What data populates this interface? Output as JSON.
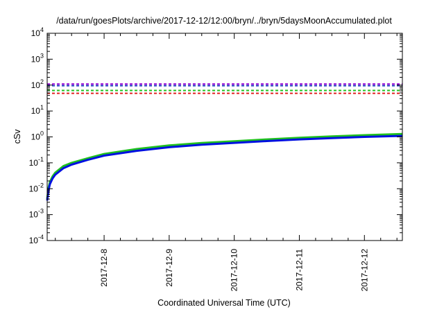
{
  "chart_data": {
    "type": "line",
    "title": "/data/run/goesPlots/archive/2017-12-12/12:00/bryn/../bryn/5daysMoonAccumulated.plot",
    "xlabel": "Coordinated Universal Time (UTC)",
    "ylabel": "cSv",
    "y_scale": "log",
    "ylim": [
      0.0001,
      10000
    ],
    "xlim": [
      "2017-12-07T03:00",
      "2017-12-12T14:00"
    ],
    "y_ticks": [
      {
        "value": 0.0001,
        "base": "10",
        "exp": "-4"
      },
      {
        "value": 0.001,
        "base": "10",
        "exp": "-3"
      },
      {
        "value": 0.01,
        "base": "10",
        "exp": "-2"
      },
      {
        "value": 0.1,
        "base": "10",
        "exp": "-1"
      },
      {
        "value": 1,
        "base": "10",
        "exp": "0"
      },
      {
        "value": 10,
        "base": "10",
        "exp": "1"
      },
      {
        "value": 100,
        "base": "10",
        "exp": "2"
      },
      {
        "value": 1000,
        "base": "10",
        "exp": "3"
      },
      {
        "value": 10000,
        "base": "10",
        "exp": "4"
      }
    ],
    "x_ticks": [
      {
        "value": "2017-12-08T00:00",
        "label": "2017-12-8"
      },
      {
        "value": "2017-12-09T00:00",
        "label": "2017-12-9"
      },
      {
        "value": "2017-12-10T00:00",
        "label": "2017-12-10"
      },
      {
        "value": "2017-12-11T00:00",
        "label": "2017-12-11"
      },
      {
        "value": "2017-12-12T00:00",
        "label": "2017-12-12"
      }
    ],
    "grid": false,
    "legend": "none",
    "reference_lines": [
      {
        "y": 110,
        "color": "#9400d3",
        "style": "dashed"
      },
      {
        "y": 95,
        "color": "#2040c0",
        "style": "dashed"
      },
      {
        "y": 62,
        "color": "#20c020",
        "style": "dashed"
      },
      {
        "y": 48,
        "color": "#e02020",
        "style": "dashed"
      }
    ],
    "series": [
      {
        "color": "#20c020",
        "x": [
          "2017-12-07T03:00",
          "2017-12-07T03:30",
          "2017-12-07T04:00",
          "2017-12-07T05:00",
          "2017-12-07T06:00",
          "2017-12-07T09:00",
          "2017-12-07T12:00",
          "2017-12-07T18:00",
          "2017-12-08T00:00",
          "2017-12-08T12:00",
          "2017-12-09T00:00",
          "2017-12-09T12:00",
          "2017-12-10T00:00",
          "2017-12-10T12:00",
          "2017-12-11T00:00",
          "2017-12-11T12:00",
          "2017-12-12T00:00",
          "2017-12-12T14:00"
        ],
        "y": [
          0.004,
          0.011,
          0.018,
          0.03,
          0.042,
          0.075,
          0.1,
          0.15,
          0.22,
          0.34,
          0.47,
          0.58,
          0.68,
          0.8,
          0.93,
          1.05,
          1.17,
          1.3
        ]
      },
      {
        "color": "#0010e0",
        "x": [
          "2017-12-07T03:00",
          "2017-12-07T03:30",
          "2017-12-07T04:00",
          "2017-12-07T05:00",
          "2017-12-07T06:00",
          "2017-12-07T09:00",
          "2017-12-07T12:00",
          "2017-12-07T18:00",
          "2017-12-08T00:00",
          "2017-12-08T12:00",
          "2017-12-09T00:00",
          "2017-12-09T12:00",
          "2017-12-10T00:00",
          "2017-12-10T12:00",
          "2017-12-11T00:00",
          "2017-12-11T12:00",
          "2017-12-12T00:00",
          "2017-12-12T14:00"
        ],
        "y": [
          0.0035,
          0.009,
          0.015,
          0.025,
          0.035,
          0.062,
          0.085,
          0.13,
          0.19,
          0.29,
          0.4,
          0.5,
          0.59,
          0.69,
          0.8,
          0.9,
          1.0,
          1.1
        ]
      }
    ]
  }
}
